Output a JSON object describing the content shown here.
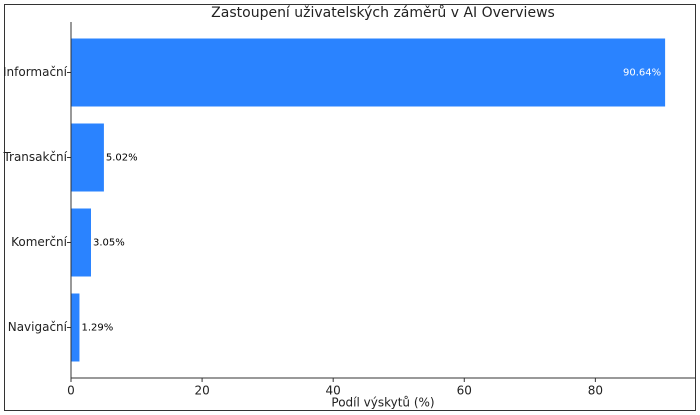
{
  "chart_data": {
    "type": "barh",
    "title": "Zastoupení uživatelských záměrů v AI Overviews",
    "categories": [
      "Informační",
      "Transakční",
      "Komerční",
      "Navigační"
    ],
    "values": [
      90.64,
      5.02,
      3.05,
      1.29
    ],
    "value_labels": [
      "90.64%",
      "5.02%",
      "3.05%",
      "1.29%"
    ],
    "color": "#2a83ff",
    "xlabel": "Podíl výskytů (%)",
    "xlim": [
      0,
      95.2
    ],
    "xticks": [
      0,
      20,
      40,
      60,
      80
    ]
  }
}
